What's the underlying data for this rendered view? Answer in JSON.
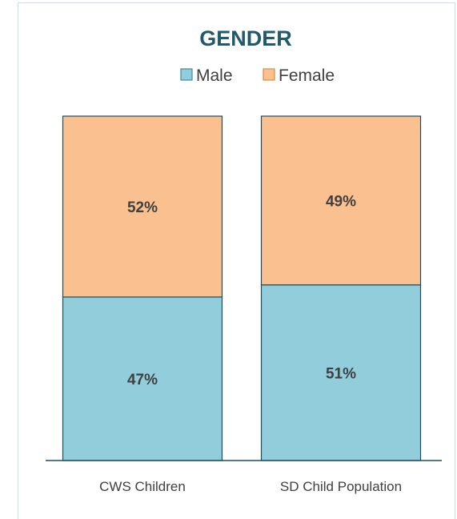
{
  "chart_data": {
    "type": "bar",
    "stacked": true,
    "title": "GENDER",
    "categories": [
      "CWS Children",
      "SD Child Population"
    ],
    "series": [
      {
        "name": "Male",
        "values": [
          47,
          51
        ],
        "labels": [
          "47%",
          "51%"
        ],
        "color": "#92cddc"
      },
      {
        "name": "Female",
        "values": [
          52,
          49
        ],
        "labels": [
          "52%",
          "49%"
        ],
        "color": "#fac090"
      }
    ],
    "legend": "top",
    "grid": false,
    "ylim": [
      0,
      100
    ]
  }
}
